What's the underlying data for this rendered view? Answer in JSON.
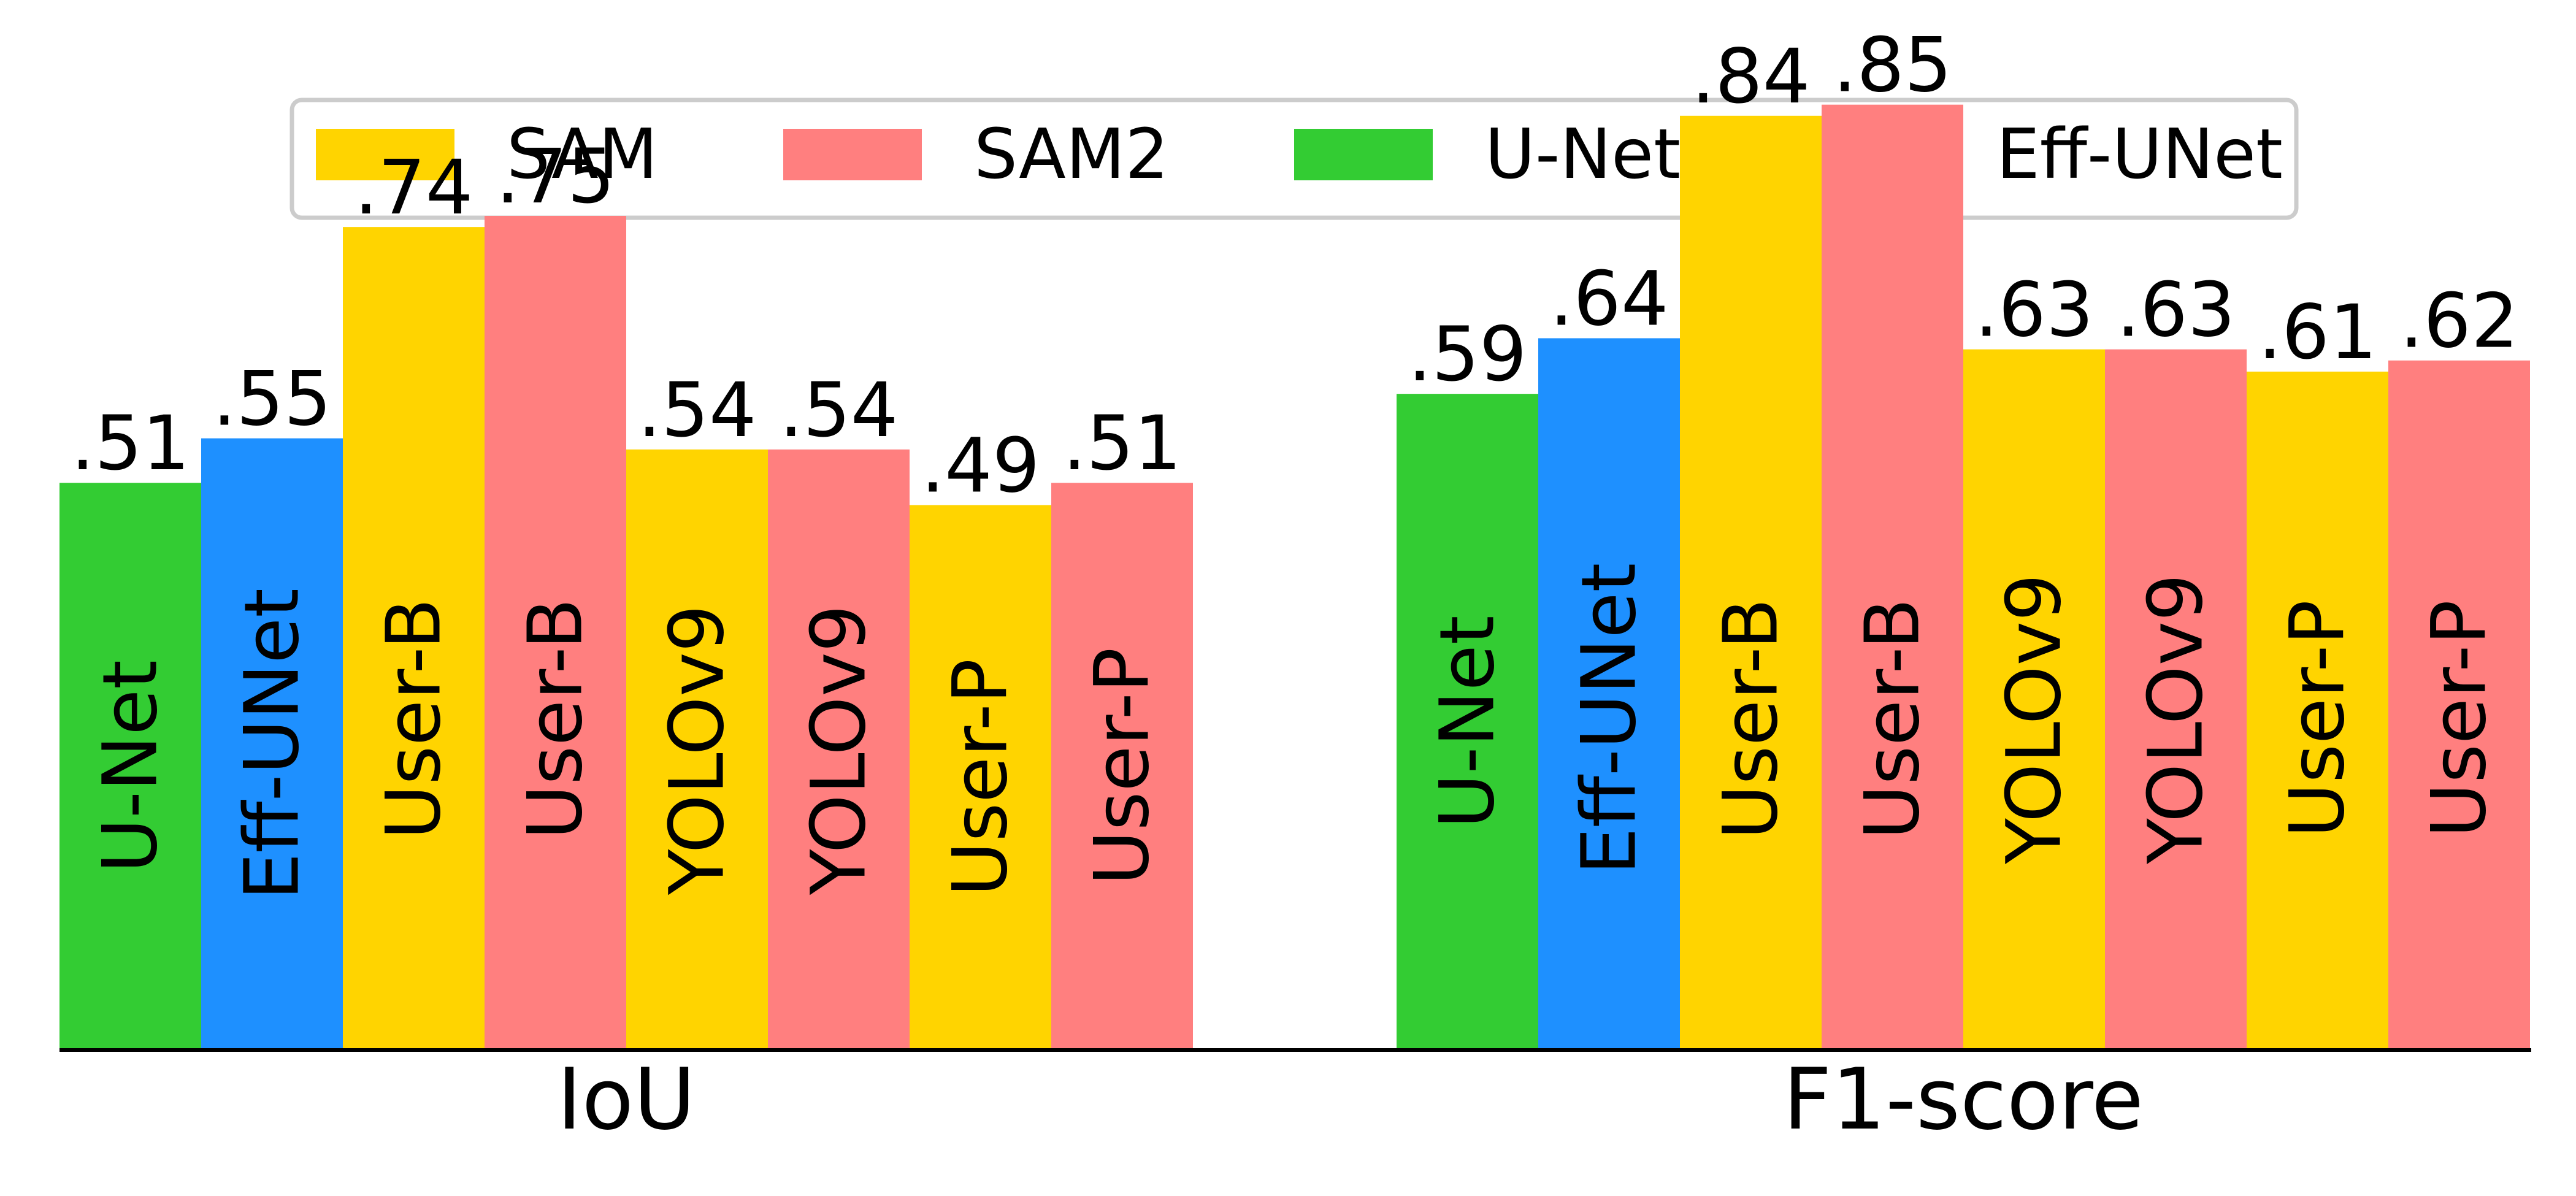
{
  "chart_data": {
    "type": "bar",
    "y_range": [
      0,
      0.95
    ],
    "grid": false,
    "legend_placement": "top-center",
    "legend": [
      {
        "name": "SAM",
        "color": "#FFD400"
      },
      {
        "name": "SAM2",
        "color": "#FF7F7F"
      },
      {
        "name": "U-Net",
        "color": "#33CC33"
      },
      {
        "name": "Eff-UNet",
        "color": "#1E90FF"
      }
    ],
    "groups": [
      {
        "label": "IoU",
        "bars": [
          {
            "category": "U-Net",
            "model": "U-Net",
            "value": 0.51,
            "value_label": ".51"
          },
          {
            "category": "Eff-UNet",
            "model": "Eff-UNet",
            "value": 0.55,
            "value_label": ".55"
          },
          {
            "category": "User-B",
            "model": "SAM",
            "value": 0.74,
            "value_label": ".74"
          },
          {
            "category": "User-B",
            "model": "SAM2",
            "value": 0.75,
            "value_label": ".75"
          },
          {
            "category": "YOLOv9",
            "model": "SAM",
            "value": 0.54,
            "value_label": ".54"
          },
          {
            "category": "YOLOv9",
            "model": "SAM2",
            "value": 0.54,
            "value_label": ".54"
          },
          {
            "category": "User-P",
            "model": "SAM",
            "value": 0.49,
            "value_label": ".49"
          },
          {
            "category": "User-P",
            "model": "SAM2",
            "value": 0.51,
            "value_label": ".51"
          }
        ]
      },
      {
        "label": "F1-score",
        "bars": [
          {
            "category": "U-Net",
            "model": "U-Net",
            "value": 0.59,
            "value_label": ".59"
          },
          {
            "category": "Eff-UNet",
            "model": "Eff-UNet",
            "value": 0.64,
            "value_label": ".64"
          },
          {
            "category": "User-B",
            "model": "SAM",
            "value": 0.84,
            "value_label": ".84"
          },
          {
            "category": "User-B",
            "model": "SAM2",
            "value": 0.85,
            "value_label": ".85"
          },
          {
            "category": "YOLOv9",
            "model": "SAM",
            "value": 0.63,
            "value_label": ".63"
          },
          {
            "category": "YOLOv9",
            "model": "SAM2",
            "value": 0.63,
            "value_label": ".63"
          },
          {
            "category": "User-P",
            "model": "SAM",
            "value": 0.61,
            "value_label": ".61"
          },
          {
            "category": "User-P",
            "model": "SAM2",
            "value": 0.62,
            "value_label": ".62"
          }
        ]
      }
    ]
  }
}
